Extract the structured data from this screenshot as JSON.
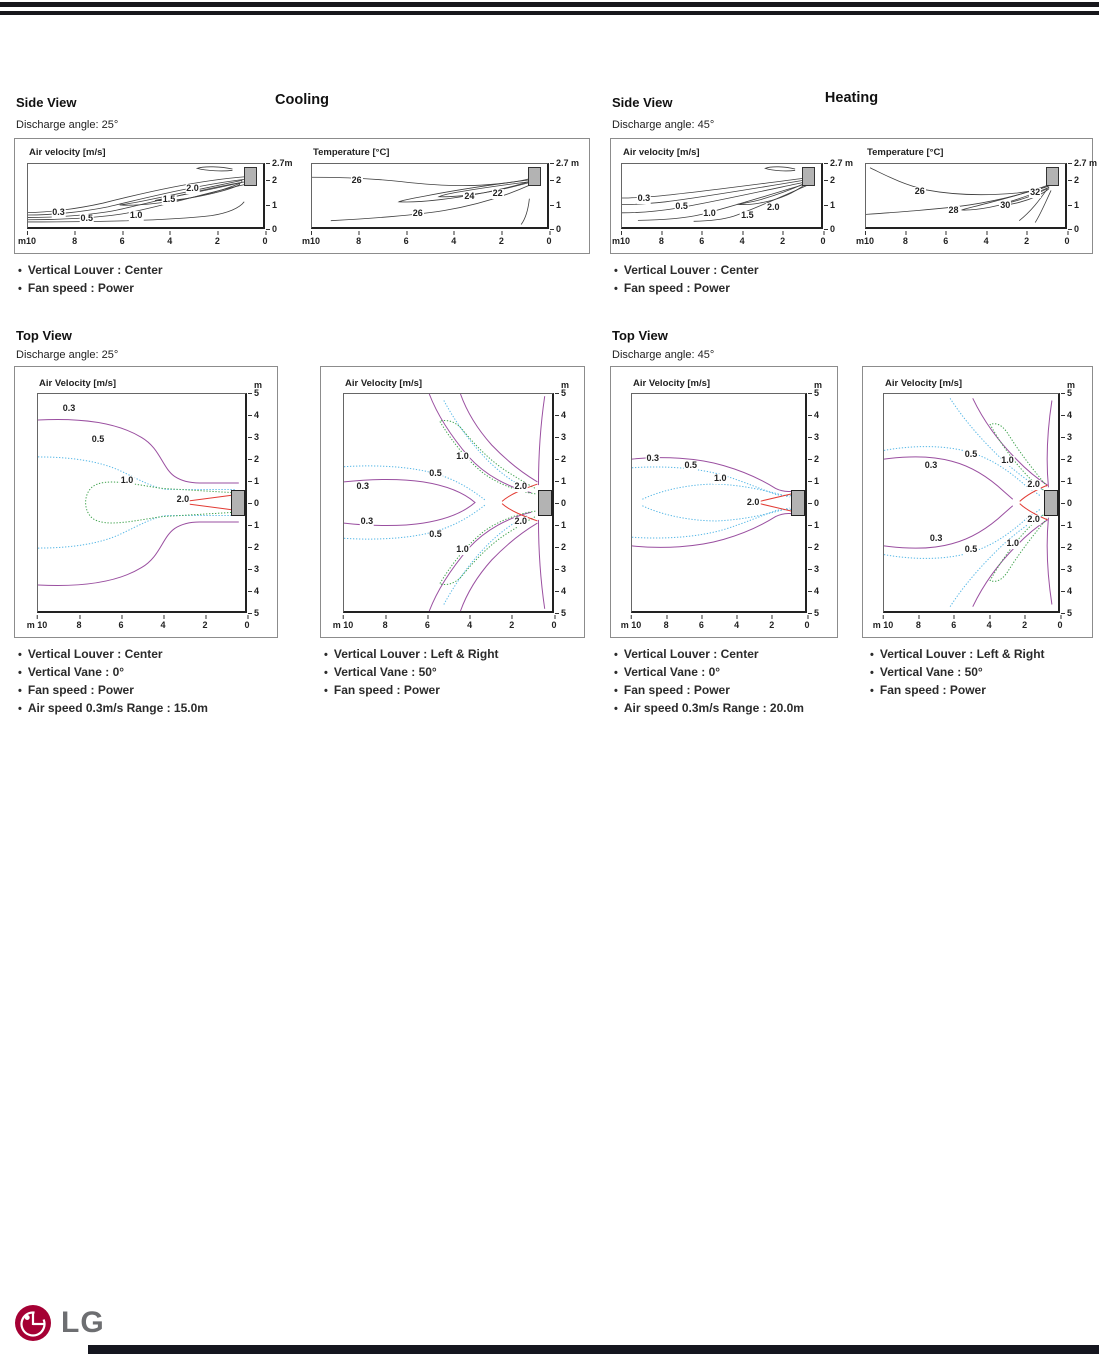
{
  "cooling": {
    "title": "Cooling",
    "side_view": {
      "heading": "Side View",
      "discharge": "Discharge angle: 25°",
      "notes": [
        "Vertical Louver : Center",
        "Fan speed : Power"
      ]
    },
    "top_view": {
      "heading": "Top View",
      "discharge": "Discharge angle: 25°",
      "center": {
        "notes": [
          "Vertical Louver : Center",
          "Vertical Vane : 0°",
          "Fan speed : Power",
          "Air speed 0.3m/s Range : 15.0m"
        ]
      },
      "leftright": {
        "notes": [
          "Vertical Louver : Left & Right",
          "Vertical Vane : 50°",
          "Fan speed : Power"
        ]
      }
    }
  },
  "heating": {
    "title": "Heating",
    "side_view": {
      "heading": "Side View",
      "discharge": "Discharge angle: 45°",
      "notes": [
        "Vertical Louver : Center",
        "Fan speed : Power"
      ]
    },
    "top_view": {
      "heading": "Top View",
      "discharge": "Discharge angle: 45°",
      "center": {
        "notes": [
          "Vertical Louver : Center",
          "Vertical Vane : 0°",
          "Fan speed : Power",
          "Air speed 0.3m/s Range : 20.0m"
        ]
      },
      "leftright": {
        "notes": [
          "Vertical Louver : Left & Right",
          "Vertical Vane : 50°",
          "Fan speed : Power"
        ]
      }
    }
  },
  "colors": {
    "contour_black": "#3f3f3f",
    "level_0_3": "#9a4fa0",
    "level_0_5": "#56b7e6",
    "level_1_0": "#3fa24d",
    "level_2_0": "#e23b33",
    "lg_red": "#a50034",
    "lg_gray": "#6d6e71"
  },
  "chart_data": [
    {
      "id": "cooling-side-air-velocity",
      "type": "contour",
      "title": "Air velocity [m/s]",
      "x_range_m": [
        10,
        0
      ],
      "y_range_m": [
        0,
        2.7
      ],
      "levels_m_s": [
        0.3,
        0.5,
        1.0,
        1.5,
        2.0
      ],
      "x_ticks": [
        "m10",
        "8",
        "6",
        "4",
        "2",
        "0"
      ],
      "y_ticks": [
        {
          "t": "2.7m",
          "p": 0
        },
        {
          "t": "2",
          "p": 26
        },
        {
          "t": "1",
          "p": 63
        },
        {
          "t": "0",
          "p": 100
        }
      ],
      "labels": [
        {
          "t": "0.3",
          "x": 13,
          "y": 78
        },
        {
          "t": "0.5",
          "x": 25,
          "y": 88
        },
        {
          "t": "1.0",
          "x": 46,
          "y": 83
        },
        {
          "t": "1.5",
          "x": 60,
          "y": 57
        },
        {
          "t": "2.0",
          "x": 70,
          "y": 40
        }
      ]
    },
    {
      "id": "cooling-side-temperature",
      "type": "contour",
      "title": "Temperature [°C]",
      "x_range_m": [
        10,
        0
      ],
      "y_range_m": [
        0,
        2.7
      ],
      "levels_c": [
        22,
        24,
        26
      ],
      "x_ticks": [
        "m10",
        "8",
        "6",
        "4",
        "2",
        "0"
      ],
      "y_ticks": [
        {
          "t": "2.7 m",
          "p": 0
        },
        {
          "t": "2",
          "p": 26
        },
        {
          "t": "1",
          "p": 63
        },
        {
          "t": "0",
          "p": 100
        }
      ],
      "labels": [
        {
          "t": "26",
          "x": 19,
          "y": 27
        },
        {
          "t": "24",
          "x": 67,
          "y": 53
        },
        {
          "t": "22",
          "x": 79,
          "y": 47
        },
        {
          "t": "26",
          "x": 45,
          "y": 80
        }
      ]
    },
    {
      "id": "heating-side-air-velocity",
      "type": "contour",
      "title": "Air velocity [m/s]",
      "x_range_m": [
        10,
        0
      ],
      "y_range_m": [
        0,
        2.7
      ],
      "levels_m_s": [
        0.3,
        0.5,
        1.0,
        1.5,
        2.0
      ],
      "x_ticks": [
        "m10",
        "8",
        "6",
        "4",
        "2",
        "0"
      ],
      "y_ticks": [
        {
          "t": "2.7 m",
          "p": 0
        },
        {
          "t": "2",
          "p": 26
        },
        {
          "t": "1",
          "p": 63
        },
        {
          "t": "0",
          "p": 100
        }
      ],
      "labels": [
        {
          "t": "0.3",
          "x": 11,
          "y": 56
        },
        {
          "t": "0.5",
          "x": 30,
          "y": 68
        },
        {
          "t": "1.0",
          "x": 44,
          "y": 80
        },
        {
          "t": "1.5",
          "x": 63,
          "y": 82
        },
        {
          "t": "2.0",
          "x": 76,
          "y": 70
        }
      ]
    },
    {
      "id": "heating-side-temperature",
      "type": "contour",
      "title": "Temperature [°C]",
      "x_range_m": [
        10,
        0
      ],
      "y_range_m": [
        0,
        2.7
      ],
      "levels_c": [
        26,
        28,
        30,
        32
      ],
      "x_ticks": [
        "m10",
        "8",
        "6",
        "4",
        "2",
        "0"
      ],
      "y_ticks": [
        {
          "t": "2.7 m",
          "p": 0
        },
        {
          "t": "2",
          "p": 26
        },
        {
          "t": "1",
          "p": 63
        },
        {
          "t": "0",
          "p": 100
        }
      ],
      "labels": [
        {
          "t": "26",
          "x": 27,
          "y": 45
        },
        {
          "t": "28",
          "x": 44,
          "y": 74
        },
        {
          "t": "30",
          "x": 70,
          "y": 66
        },
        {
          "t": "32",
          "x": 85,
          "y": 46
        }
      ]
    },
    {
      "id": "cooling-top-center",
      "type": "contour",
      "title": "Air Velocity [m/s]",
      "x_range_m": [
        10,
        0
      ],
      "y_range_m": [
        5,
        -5
      ],
      "levels_m_s": [
        0.3,
        0.5,
        1.0,
        2.0
      ],
      "y_unit": "m",
      "x_ticks": [
        "m 10",
        "8",
        "6",
        "4",
        "2",
        "0"
      ],
      "y_ticks": [
        "5",
        "4",
        "3",
        "2",
        "1",
        "0",
        "1",
        "2",
        "3",
        "4",
        "5"
      ],
      "labels": [
        {
          "t": "0.3",
          "x": 15,
          "y": 7
        },
        {
          "t": "0.5",
          "x": 29,
          "y": 21
        },
        {
          "t": "1.0",
          "x": 43,
          "y": 40
        },
        {
          "t": "2.0",
          "x": 70,
          "y": 49
        }
      ]
    },
    {
      "id": "cooling-top-leftright",
      "type": "contour",
      "title": "Air Velocity [m/s]",
      "x_range_m": [
        10,
        0
      ],
      "y_range_m": [
        5,
        -5
      ],
      "levels_m_s": [
        0.3,
        0.5,
        1.0,
        2.0
      ],
      "y_unit": "m",
      "x_ticks": [
        "m 10",
        "8",
        "6",
        "4",
        "2",
        "0"
      ],
      "y_ticks": [
        "5",
        "4",
        "3",
        "2",
        "1",
        "0",
        "1",
        "2",
        "3",
        "4",
        "5"
      ],
      "labels": [
        {
          "t": "1.0",
          "x": 57,
          "y": 29
        },
        {
          "t": "0.5",
          "x": 44,
          "y": 37
        },
        {
          "t": "0.3",
          "x": 9,
          "y": 43
        },
        {
          "t": "2.0",
          "x": 85,
          "y": 43
        },
        {
          "t": "2.0",
          "x": 85,
          "y": 59
        },
        {
          "t": "0.3",
          "x": 11,
          "y": 59
        },
        {
          "t": "0.5",
          "x": 44,
          "y": 65
        },
        {
          "t": "1.0",
          "x": 57,
          "y": 72
        }
      ]
    },
    {
      "id": "heating-top-center",
      "type": "contour",
      "title": "Air Velocity [m/s]",
      "x_range_m": [
        10,
        0
      ],
      "y_range_m": [
        5,
        -5
      ],
      "levels_m_s": [
        0.3,
        0.5,
        1.0,
        2.0
      ],
      "y_unit": "m",
      "x_ticks": [
        "m 10",
        "8",
        "6",
        "4",
        "2",
        "0"
      ],
      "y_ticks": [
        "5",
        "4",
        "3",
        "2",
        "1",
        "0",
        "1",
        "2",
        "3",
        "4",
        "5"
      ],
      "labels": [
        {
          "t": "0.3",
          "x": 12,
          "y": 30
        },
        {
          "t": "0.5",
          "x": 34,
          "y": 33
        },
        {
          "t": "1.0",
          "x": 51,
          "y": 39
        },
        {
          "t": "2.0",
          "x": 70,
          "y": 50
        }
      ]
    },
    {
      "id": "heating-top-leftright",
      "type": "contour",
      "title": "Air Velocity [m/s]",
      "x_range_m": [
        10,
        0
      ],
      "y_range_m": [
        5,
        -5
      ],
      "levels_m_s": [
        0.3,
        0.5,
        1.0,
        2.0
      ],
      "y_unit": "m",
      "x_ticks": [
        "m 10",
        "8",
        "6",
        "4",
        "2",
        "0"
      ],
      "y_ticks": [
        "5",
        "4",
        "3",
        "2",
        "1",
        "0",
        "1",
        "2",
        "3",
        "4",
        "5"
      ],
      "labels": [
        {
          "t": "0.5",
          "x": 50,
          "y": 28
        },
        {
          "t": "0.3",
          "x": 27,
          "y": 33
        },
        {
          "t": "1.0",
          "x": 71,
          "y": 31
        },
        {
          "t": "2.0",
          "x": 86,
          "y": 42
        },
        {
          "t": "2.0",
          "x": 86,
          "y": 58
        },
        {
          "t": "0.3",
          "x": 30,
          "y": 67
        },
        {
          "t": "0.5",
          "x": 50,
          "y": 72
        },
        {
          "t": "1.0",
          "x": 74,
          "y": 69
        }
      ]
    }
  ],
  "footer": {
    "brand": "LG"
  }
}
